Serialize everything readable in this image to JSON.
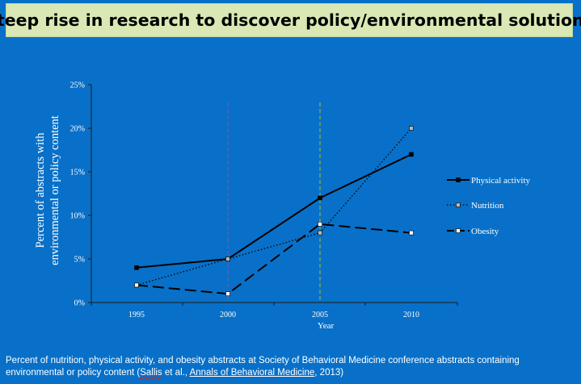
{
  "title": "Steep rise in research to discover policy/environmental solutions",
  "caption": {
    "line1": "Percent of nutrition, physical activity, and obesity abstracts at Society of Behavioral Medicine conference abstracts containing",
    "line2_prefix": "environmental or policy content  (",
    "author": "Sallis",
    "line2_mid": " et al., ",
    "journal": "Annals of Behavioral Medicine",
    "line2_suffix": ", 2013)"
  },
  "chart_data": {
    "type": "line",
    "categories": [
      "1995",
      "2000",
      "2005",
      "2010"
    ],
    "xlabel": "Year",
    "ylabel_lines": [
      "Percent of abstracts with",
      "environmental or policy content"
    ],
    "ylim": [
      0,
      25
    ],
    "yticks": [
      "0%",
      "5%",
      "10%",
      "15%",
      "20%",
      "25%"
    ],
    "grid": false,
    "legend_position": "right",
    "reference_lines": [
      {
        "category": "2000",
        "color": "#7a55a8"
      },
      {
        "category": "2005",
        "color": "#8fb040"
      }
    ],
    "series": [
      {
        "name": "Physical activity",
        "values": [
          4,
          5,
          12,
          17
        ],
        "style": "solid",
        "marker_fill": "#000000"
      },
      {
        "name": "Nutrition",
        "values": [
          2,
          5,
          8,
          20
        ],
        "style": "dotted",
        "marker_fill": "#b8b8b8"
      },
      {
        "name": "Obesity",
        "values": [
          2,
          1,
          9,
          8
        ],
        "style": "dashed",
        "marker_fill": "#ffffff"
      }
    ]
  }
}
